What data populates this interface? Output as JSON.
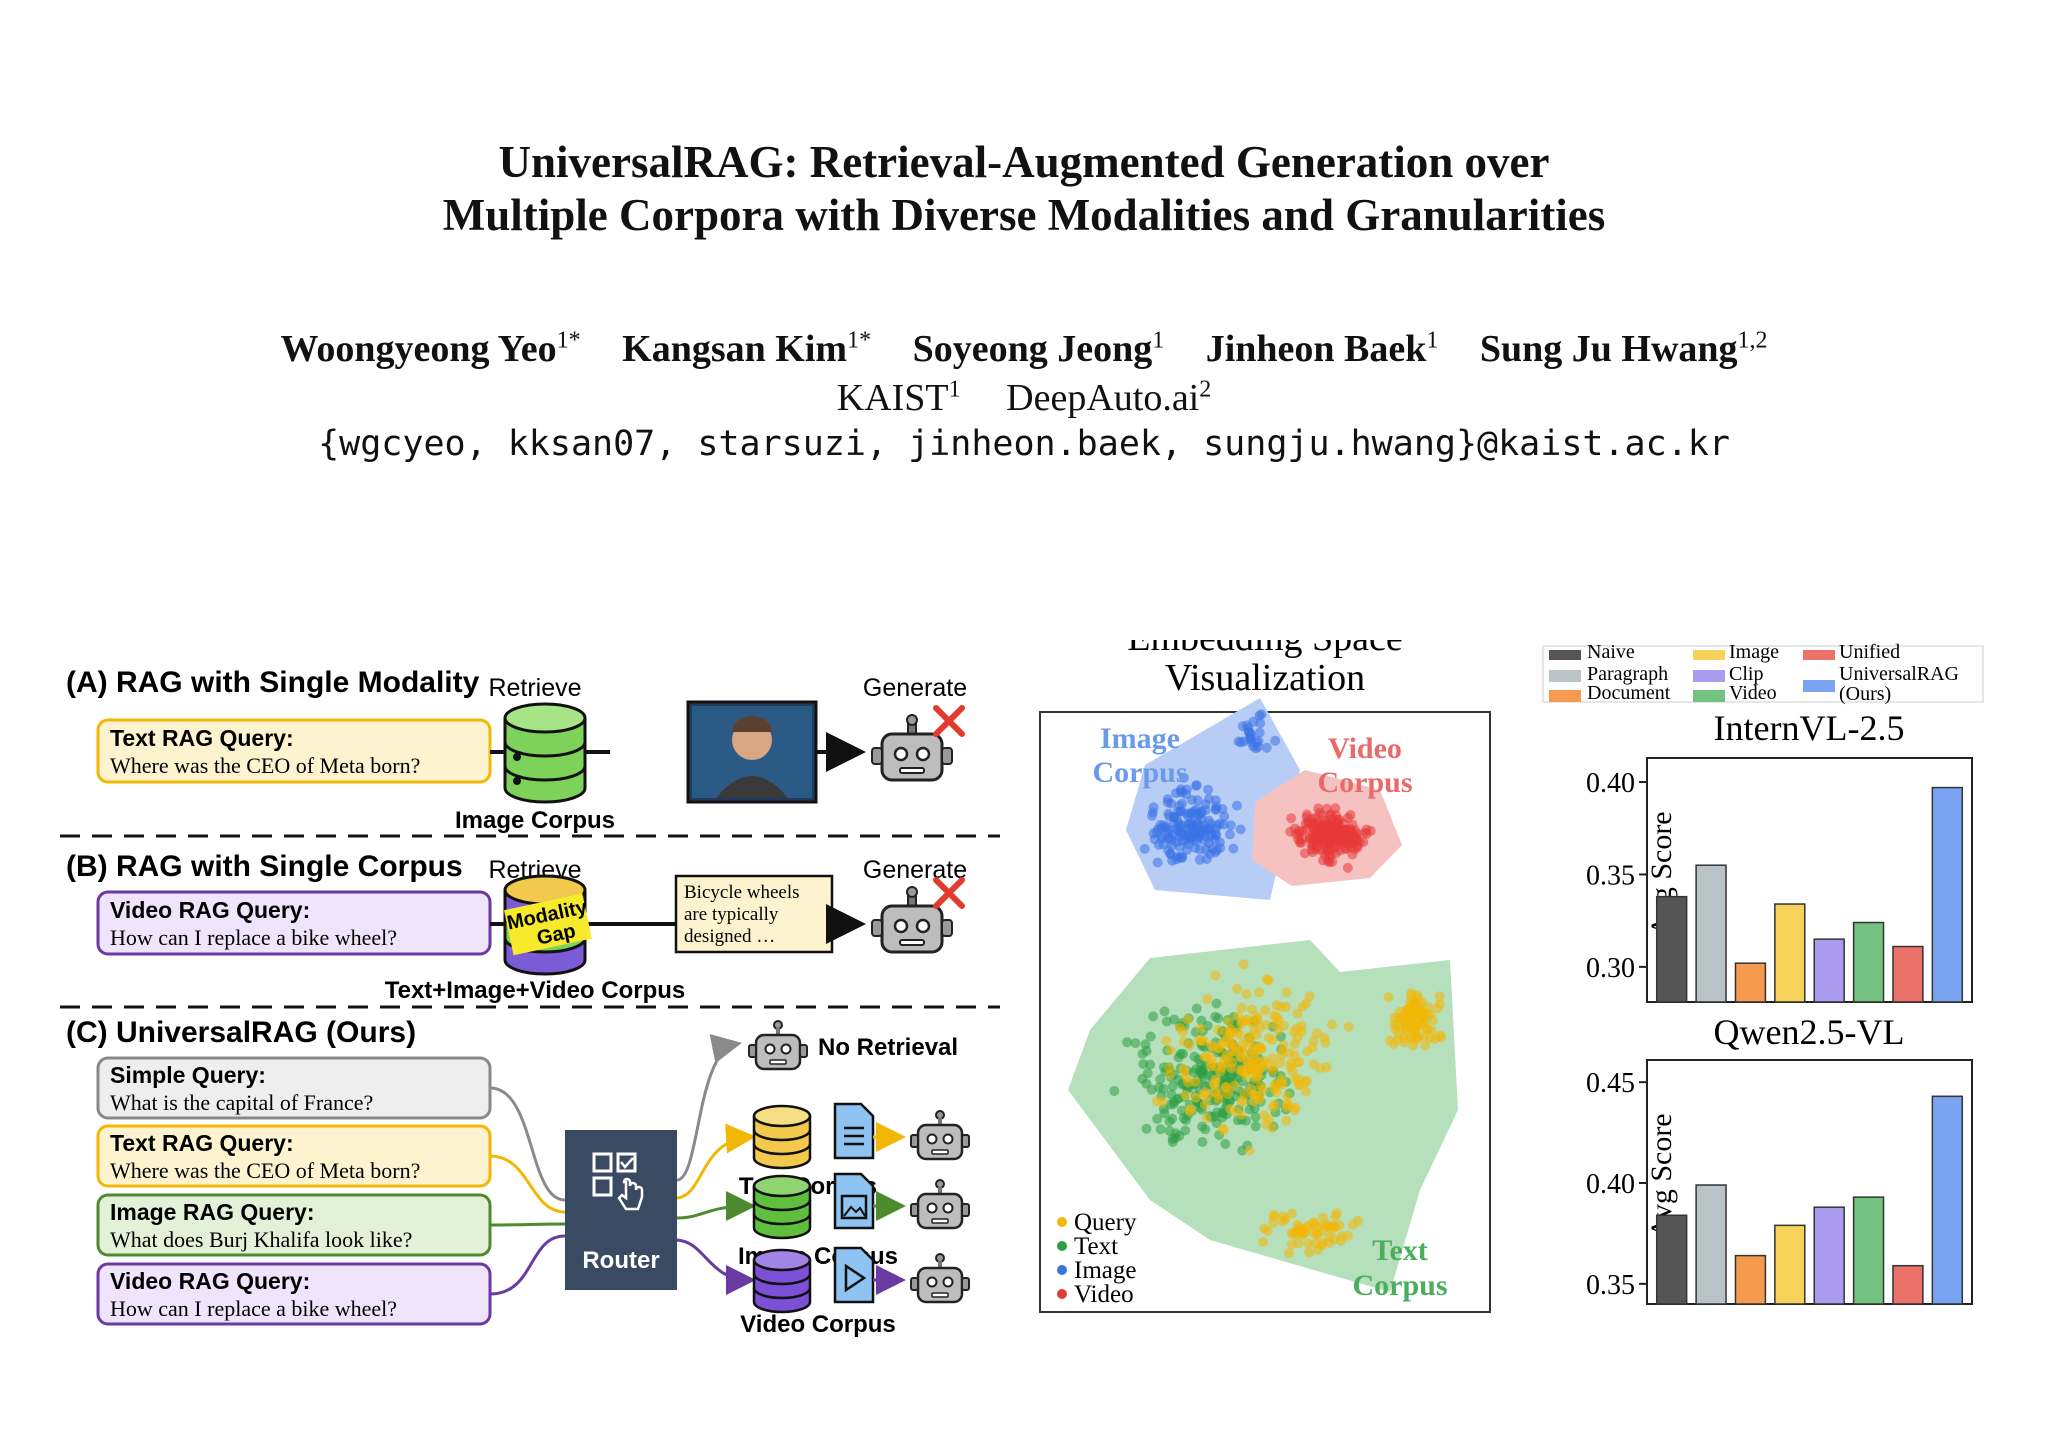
{
  "paper": {
    "title_line1": "UniversalRAG: Retrieval-Augmented Generation over",
    "title_line2": "Multiple Corpora with Diverse Modalities and Granularities",
    "authors": [
      {
        "name": "Woongyeong Yeo",
        "sup": "1*"
      },
      {
        "name": "Kangsan Kim",
        "sup": "1*"
      },
      {
        "name": "Soyeong Jeong",
        "sup": "1"
      },
      {
        "name": "Jinheon Baek",
        "sup": "1"
      },
      {
        "name": "Sung Ju Hwang",
        "sup": "1,2"
      }
    ],
    "affiliations": [
      {
        "name": "KAIST",
        "sup": "1"
      },
      {
        "name": "DeepAuto.ai",
        "sup": "2"
      }
    ],
    "emails": "{wgcyeo, kksan07, starsuzi, jinheon.baek, sungju.hwang}@kaist.ac.kr"
  },
  "figure_left": {
    "section_a": {
      "heading": "(A) RAG with Single Modality",
      "retrieve": "Retrieve",
      "generate": "Generate",
      "query_label": "Text RAG Query:",
      "query_text": "Where was the CEO of Meta born?",
      "corpus": "Image Corpus"
    },
    "section_b": {
      "heading": "(B) RAG with Single Corpus",
      "retrieve": "Retrieve",
      "generate": "Generate",
      "query_label": "Video RAG Query:",
      "query_text": "How can I replace a bike wheel?",
      "gap_line1": "Modality",
      "gap_line2": "Gap",
      "doc_line1": "Bicycle wheels",
      "doc_line2": "are typically",
      "doc_line3": "designed …",
      "corpus": "Text+Image+Video Corpus"
    },
    "section_c": {
      "heading": "(C) UniversalRAG (Ours)",
      "queries": [
        {
          "label": "Simple Query:",
          "text": "What is the capital of France?"
        },
        {
          "label": "Text RAG Query:",
          "text": "Where was the CEO of Meta born?"
        },
        {
          "label": "Image RAG Query:",
          "text": "What does Burj Khalifa look like?"
        },
        {
          "label": "Video RAG Query:",
          "text": "How can I replace a bike wheel?"
        }
      ],
      "router": "Router",
      "no_retrieval": "No Retrieval",
      "text_corpus": "Text Corpus",
      "image_corpus": "Image Corpus",
      "video_corpus": "Video Corpus"
    }
  },
  "figure_mid": {
    "title_line1": "Embedding Space",
    "title_line2": "Visualization",
    "image_corpus_line1": "Image",
    "image_corpus_line2": "Corpus",
    "video_corpus_line1": "Video",
    "video_corpus_line2": "Corpus",
    "text_corpus_line1": "Text",
    "text_corpus_line2": "Corpus",
    "legend": [
      "Query",
      "Text",
      "Image",
      "Video"
    ],
    "colors": {
      "query": "#f2b705",
      "text": "#2e9e44",
      "image": "#3b73e6",
      "video": "#e83838"
    }
  },
  "legend_bars": [
    {
      "name": "Naive",
      "color": "#555555"
    },
    {
      "name": "Paragraph",
      "color": "#b9c4c9"
    },
    {
      "name": "Document",
      "color": "#f59a4f"
    },
    {
      "name": "Image",
      "color": "#f7d25a"
    },
    {
      "name": "Clip",
      "color": "#aa9bee"
    },
    {
      "name": "Video",
      "color": "#73c27f"
    },
    {
      "name": "Unified",
      "color": "#ea7269"
    },
    {
      "name": "UniversalRAG",
      "color": "#7aa3f2"
    },
    {
      "name": "(Ours)",
      "color": "#7aa3f2"
    }
  ],
  "chart_data": [
    {
      "type": "bar",
      "title": "InternVL-2.5",
      "ylabel": "Avg Score",
      "xlabel": "",
      "categories": [
        "Naive",
        "Paragraph",
        "Document",
        "Image",
        "Clip",
        "Video",
        "Unified",
        "UniversalRAG (Ours)"
      ],
      "values": [
        0.338,
        0.355,
        0.302,
        0.334,
        0.315,
        0.324,
        0.311,
        0.397
      ],
      "ylim": [
        0.281,
        0.413
      ],
      "yticks": [
        "0.30",
        "0.35",
        "0.40"
      ],
      "ytick_values": [
        0.3,
        0.35,
        0.4
      ]
    },
    {
      "type": "bar",
      "title": "Qwen2.5-VL",
      "ylabel": "Avg Score",
      "xlabel": "",
      "categories": [
        "Naive",
        "Paragraph",
        "Document",
        "Image",
        "Clip",
        "Video",
        "Unified",
        "UniversalRAG (Ours)"
      ],
      "values": [
        0.384,
        0.399,
        0.364,
        0.379,
        0.388,
        0.393,
        0.359,
        0.443
      ],
      "ylim": [
        0.34,
        0.461
      ],
      "yticks": [
        "0.35",
        "0.40",
        "0.45"
      ],
      "ytick_values": [
        0.35,
        0.4,
        0.45
      ]
    }
  ]
}
